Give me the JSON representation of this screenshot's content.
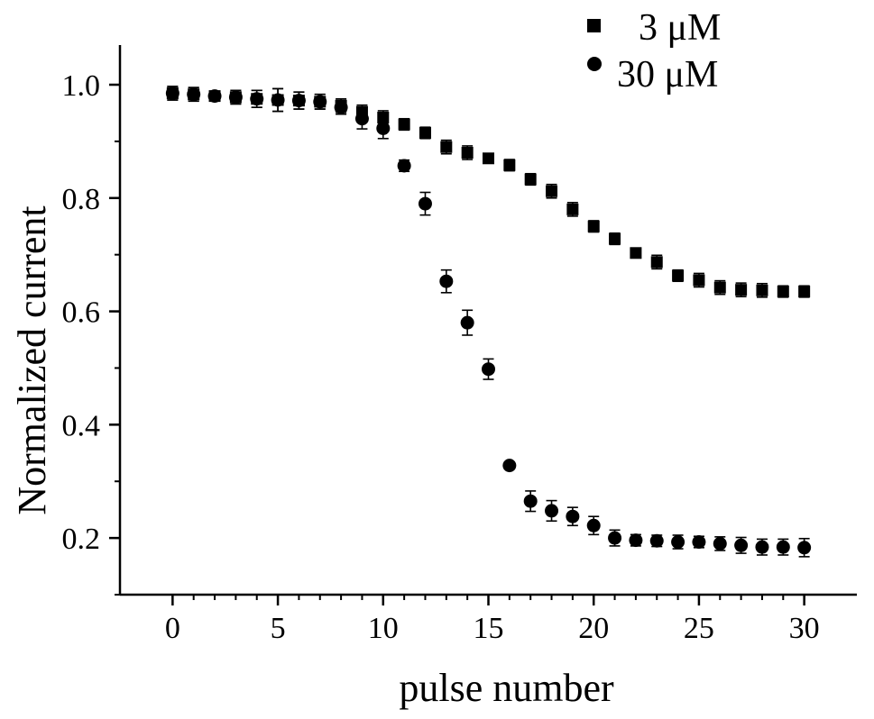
{
  "chart_data": {
    "type": "scatter",
    "title": "",
    "xlabel": "pulse number",
    "ylabel": "Normalized current",
    "xlim": [
      -2.5,
      32.5
    ],
    "ylim": [
      0.1,
      1.07
    ],
    "x_ticks": [
      0,
      5,
      10,
      15,
      20,
      25,
      30
    ],
    "x_tick_labels": [
      "0",
      "5",
      "10",
      "15",
      "20",
      "25",
      "30"
    ],
    "y_ticks": [
      0.2,
      0.4,
      0.6,
      0.8,
      1.0
    ],
    "y_tick_labels": [
      "0.2",
      "0.4",
      "0.6",
      "0.8",
      "1.0"
    ],
    "grid": false,
    "legend_position": "top-right",
    "series": [
      {
        "name": "3 μM",
        "marker": "square",
        "color": "#000000",
        "x": [
          0,
          1,
          2,
          3,
          4,
          5,
          6,
          7,
          8,
          9,
          10,
          11,
          12,
          13,
          14,
          15,
          16,
          17,
          18,
          19,
          20,
          21,
          22,
          23,
          24,
          25,
          26,
          27,
          28,
          29,
          30
        ],
        "y": [
          0.985,
          0.983,
          0.98,
          0.978,
          0.975,
          0.973,
          0.972,
          0.97,
          0.963,
          0.952,
          0.942,
          0.93,
          0.915,
          0.89,
          0.88,
          0.87,
          0.858,
          0.833,
          0.812,
          0.78,
          0.75,
          0.728,
          0.703,
          0.687,
          0.663,
          0.655,
          0.642,
          0.638,
          0.637,
          0.635,
          0.635
        ],
        "err": [
          0.012,
          0.012,
          0.008,
          0.012,
          0.015,
          0.02,
          0.015,
          0.013,
          0.012,
          0.012,
          0.012,
          0.01,
          0.01,
          0.012,
          0.012,
          0.008,
          0.01,
          0.01,
          0.012,
          0.012,
          0.01,
          0.01,
          0.008,
          0.012,
          0.01,
          0.012,
          0.012,
          0.012,
          0.012,
          0.01,
          0.01
        ]
      },
      {
        "name": "30 μM",
        "marker": "circle",
        "color": "#000000",
        "x": [
          0,
          1,
          2,
          3,
          4,
          5,
          6,
          7,
          8,
          9,
          10,
          11,
          12,
          13,
          14,
          15,
          16,
          17,
          18,
          19,
          20,
          21,
          22,
          23,
          24,
          25,
          26,
          27,
          28,
          29,
          30
        ],
        "y": [
          0.985,
          0.983,
          0.98,
          0.978,
          0.975,
          0.973,
          0.972,
          0.97,
          0.96,
          0.94,
          0.923,
          0.857,
          0.79,
          0.653,
          0.58,
          0.498,
          0.328,
          0.265,
          0.248,
          0.238,
          0.222,
          0.2,
          0.196,
          0.195,
          0.193,
          0.193,
          0.19,
          0.187,
          0.184,
          0.184,
          0.183
        ],
        "err": [
          0.012,
          0.012,
          0.008,
          0.012,
          0.015,
          0.02,
          0.015,
          0.013,
          0.012,
          0.018,
          0.018,
          0.01,
          0.02,
          0.02,
          0.022,
          0.018,
          0.006,
          0.018,
          0.018,
          0.016,
          0.016,
          0.014,
          0.01,
          0.01,
          0.012,
          0.01,
          0.012,
          0.014,
          0.014,
          0.014,
          0.016
        ]
      }
    ]
  }
}
